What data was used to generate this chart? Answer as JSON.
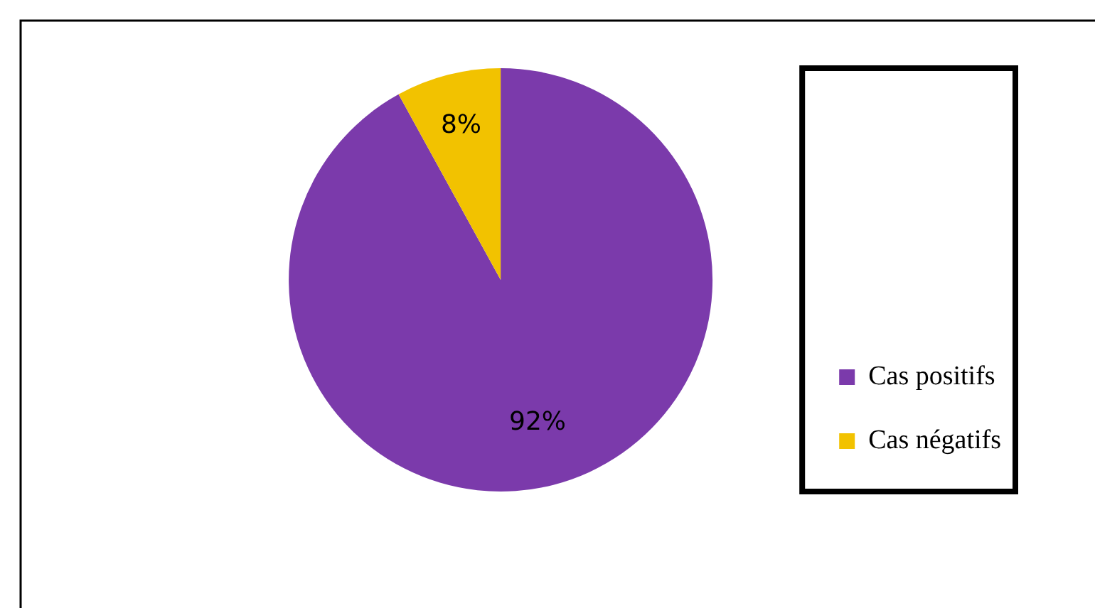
{
  "chart_data": {
    "type": "pie",
    "categories": [
      "Cas positifs",
      "Cas négatifs"
    ],
    "values": [
      92,
      8
    ],
    "value_labels": [
      "92%",
      "8%"
    ],
    "colors": [
      "#7b3aab",
      "#f2c200"
    ],
    "legend": "right"
  }
}
